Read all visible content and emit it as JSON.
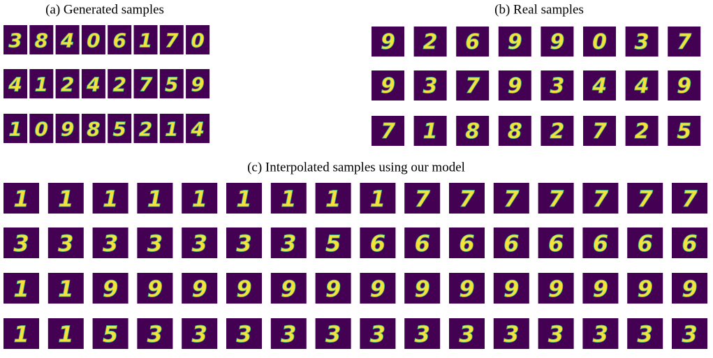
{
  "panels": [
    {
      "caption": "(a) Generated samples",
      "rows": [
        [
          "3",
          "8",
          "4",
          "0",
          "6",
          "1",
          "7",
          "0"
        ],
        [
          "4",
          "1",
          "2",
          "4",
          "2",
          "7",
          "5",
          "9"
        ],
        [
          "1",
          "0",
          "9",
          "8",
          "5",
          "2",
          "1",
          "4"
        ]
      ]
    },
    {
      "caption": "(b) Real samples",
      "rows": [
        [
          "9",
          "2",
          "6",
          "9",
          "9",
          "0",
          "3",
          "7"
        ],
        [
          "9",
          "3",
          "7",
          "9",
          "3",
          "4",
          "4",
          "9"
        ],
        [
          "7",
          "1",
          "8",
          "8",
          "2",
          "7",
          "2",
          "5"
        ]
      ]
    },
    {
      "caption": "(c) Interpolated samples using our model",
      "rows": [
        [
          "1",
          "1",
          "1",
          "1",
          "1",
          "1",
          "1",
          "1",
          "1",
          "7",
          "7",
          "7",
          "7",
          "7",
          "7",
          "7"
        ],
        [
          "3",
          "3",
          "3",
          "3",
          "3",
          "3",
          "3",
          "5",
          "6",
          "6",
          "6",
          "6",
          "6",
          "6",
          "6",
          "6"
        ],
        [
          "1",
          "1",
          "9",
          "9",
          "9",
          "9",
          "9",
          "9",
          "9",
          "9",
          "9",
          "9",
          "9",
          "9",
          "9",
          "9"
        ],
        [
          "1",
          "1",
          "5",
          "3",
          "3",
          "3",
          "3",
          "3",
          "3",
          "3",
          "3",
          "3",
          "3",
          "3",
          "3",
          "3"
        ]
      ]
    }
  ]
}
